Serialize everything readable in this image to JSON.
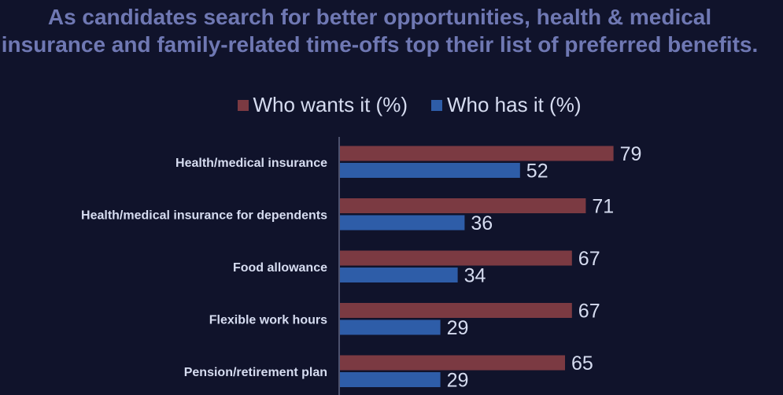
{
  "chart_data": {
    "type": "bar",
    "orientation": "horizontal",
    "title": "As candidates search for better opportunities, health & medical insurance and family-related time-offs top their list of preferred benefits.",
    "categories": [
      "Health/medical insurance",
      "Health/medical insurance for dependents",
      "Food allowance",
      "Flexible work hours",
      "Pension/retirement plan"
    ],
    "series": [
      {
        "name": "Who wants it (%)",
        "values": [
          79,
          71,
          67,
          67,
          65
        ],
        "color": "#7b3a42"
      },
      {
        "name": "Who has it (%)",
        "values": [
          52,
          36,
          34,
          29,
          29
        ],
        "color": "#2e5da8"
      }
    ],
    "xlim": [
      0,
      100
    ],
    "legend_position": "top",
    "grid": false,
    "data_labels": true
  },
  "colors": {
    "background": "#10132b",
    "title": "#6f78b3",
    "text": "#d6dcf0",
    "axis": "#8a90b0"
  }
}
